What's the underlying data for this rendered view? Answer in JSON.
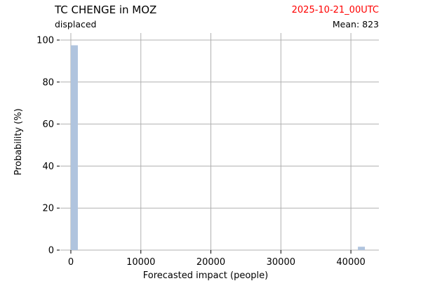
{
  "header": {
    "title": "TC CHENGE in MOZ",
    "subtitle": "displaced",
    "date": "2025-10-21_00UTC",
    "date_color": "#ff0000",
    "mean": "Mean: 823"
  },
  "chart_data": {
    "type": "bar",
    "xlabel": "Forecasted impact (people)",
    "ylabel": "Probability (%)",
    "xlim": [
      -1500,
      44000
    ],
    "ylim": [
      0,
      100
    ],
    "xticks": [
      0,
      10000,
      20000,
      30000,
      40000
    ],
    "yticks": [
      0,
      20,
      40,
      60,
      80,
      100
    ],
    "grid": true,
    "bar_color": "#b0c4de",
    "bins": [
      {
        "x0": 0,
        "x1": 1000,
        "value": 97.5
      },
      {
        "x0": 41000,
        "x1": 42000,
        "value": 1.6
      }
    ]
  }
}
